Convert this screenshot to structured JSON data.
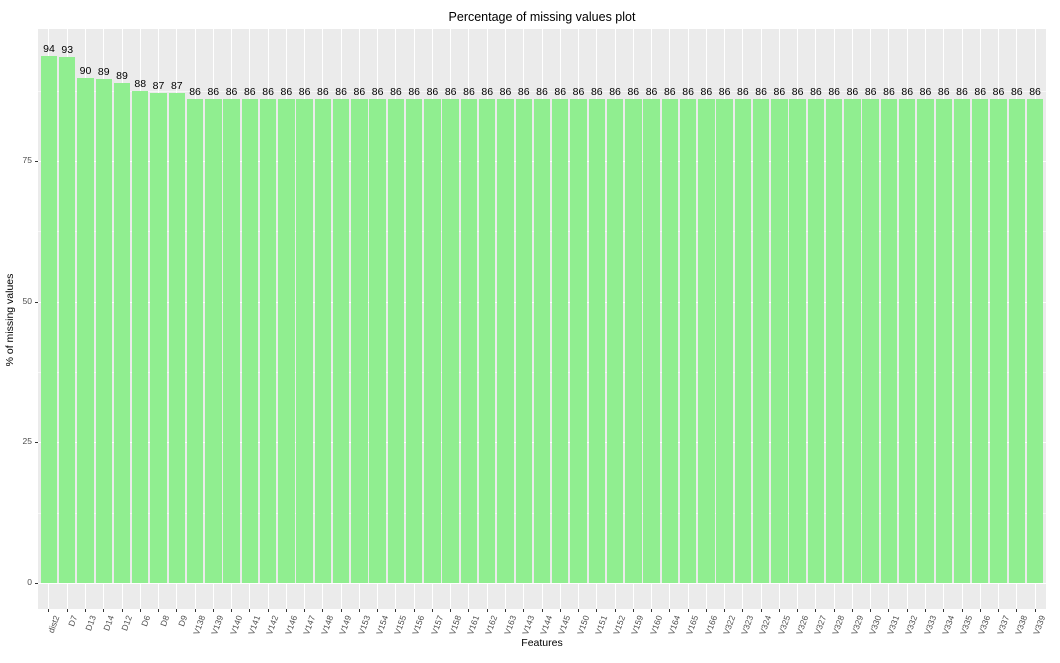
{
  "chart_data": {
    "type": "bar",
    "title": "Percentage of missing values plot",
    "xlabel": "Features",
    "ylabel": "% of missing values",
    "ylim": [
      0,
      100
    ],
    "yticks": [
      0,
      25,
      50,
      75
    ],
    "grid": true,
    "legend": null,
    "bar_color": "#90ee90",
    "panel_background": "#ebebeb",
    "categories": [
      "dist2",
      "D7",
      "D13",
      "D14",
      "D12",
      "D6",
      "D8",
      "D9",
      "V138",
      "V139",
      "V140",
      "V141",
      "V142",
      "V146",
      "V147",
      "V148",
      "V149",
      "V153",
      "V154",
      "V155",
      "V156",
      "V157",
      "V158",
      "V161",
      "V162",
      "V163",
      "V143",
      "V144",
      "V145",
      "V150",
      "V151",
      "V152",
      "V159",
      "V160",
      "V164",
      "V165",
      "V166",
      "V322",
      "V323",
      "V324",
      "V325",
      "V326",
      "V327",
      "V328",
      "V329",
      "V330",
      "V331",
      "V332",
      "V333",
      "V334",
      "V335",
      "V336",
      "V337",
      "V338",
      "V339"
    ],
    "values": [
      94,
      93,
      90,
      89,
      89,
      88,
      87,
      87,
      86,
      86,
      86,
      86,
      86,
      86,
      86,
      86,
      86,
      86,
      86,
      86,
      86,
      86,
      86,
      86,
      86,
      86,
      86,
      86,
      86,
      86,
      86,
      86,
      86,
      86,
      86,
      86,
      86,
      86,
      86,
      86,
      86,
      86,
      86,
      86,
      86,
      86,
      86,
      86,
      86,
      86,
      86,
      86,
      86,
      86,
      86
    ],
    "bar_heights_exact": [
      93.6,
      93.4,
      89.7,
      89.5,
      88.9,
      87.5,
      87.1,
      87.0,
      86.1,
      86.1,
      86.1,
      86.1,
      86.1,
      86.1,
      86.1,
      86.1,
      86.1,
      86.1,
      86.1,
      86.1,
      86.1,
      86.1,
      86.1,
      86.1,
      86.1,
      86.1,
      86.1,
      86.1,
      86.1,
      86.1,
      86.1,
      86.1,
      86.1,
      86.1,
      86.1,
      86.1,
      86.1,
      86.1,
      86.1,
      86.1,
      86.1,
      86.1,
      86.1,
      86.1,
      86.1,
      86.1,
      86.1,
      86.1,
      86.1,
      86.1,
      86.1,
      86.1,
      86.1,
      86.1,
      86.1
    ]
  }
}
